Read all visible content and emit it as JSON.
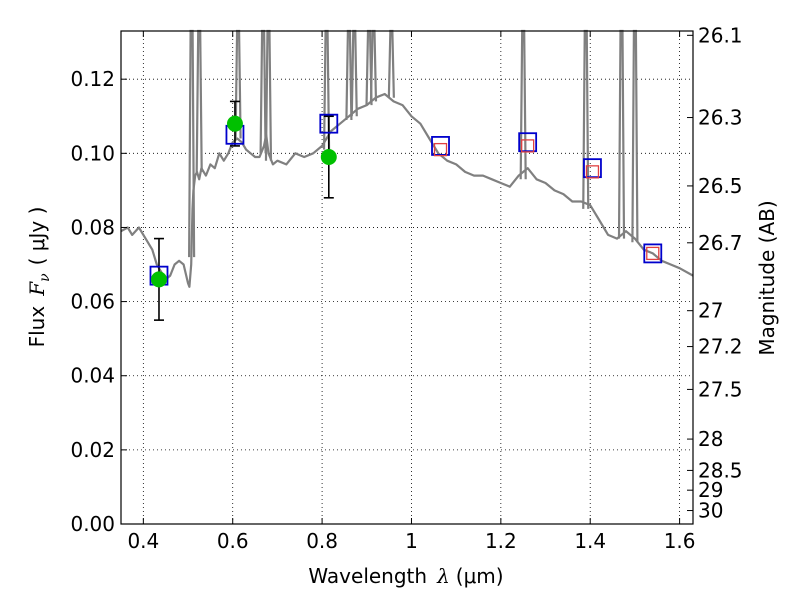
{
  "chart_data": {
    "type": "line",
    "xlabel_prefix": "Wavelength",
    "xlabel_symbol": "λ",
    "xlabel_unit": "(μm)",
    "ylabel_prefix": "Flux",
    "ylabel_symbol": "F",
    "ylabel_subscript": "ν",
    "ylabel_unit": "( μJy )",
    "y2label": "Magnitude (AB)",
    "xlim": [
      0.35,
      1.63
    ],
    "ylim": [
      0.0,
      0.133
    ],
    "grid": true,
    "x_ticks": [
      0.4,
      0.6,
      0.8,
      1.0,
      1.2,
      1.4,
      1.6
    ],
    "x_tick_labels": [
      "0.4",
      "0.6",
      "0.8",
      "1",
      "1.2",
      "1.4",
      "1.6"
    ],
    "y_ticks": [
      0.0,
      0.02,
      0.04,
      0.06,
      0.08,
      0.1,
      0.12
    ],
    "y_tick_labels": [
      "0.00",
      "0.02",
      "0.04",
      "0.06",
      "0.08",
      "0.10",
      "0.12"
    ],
    "mag_ticks": [
      26.1,
      26.3,
      26.5,
      26.7,
      27,
      27.2,
      27.5,
      28,
      28.5,
      29,
      30
    ],
    "mag_tick_labels": [
      "26.1",
      "26.3",
      "26.5",
      "26.7",
      "27",
      "27.2",
      "27.5",
      "28",
      "28.5",
      "29",
      "30"
    ],
    "series": [
      {
        "name": "model spectrum",
        "color": "#808080",
        "kind": "line",
        "x": [
          0.35,
          0.365,
          0.375,
          0.39,
          0.405,
          0.42,
          0.43,
          0.44,
          0.45,
          0.46,
          0.47,
          0.48,
          0.49,
          0.5,
          0.503,
          0.507,
          0.51,
          0.512,
          0.516,
          0.52,
          0.525,
          0.53,
          0.54,
          0.55,
          0.56,
          0.57,
          0.58,
          0.59,
          0.6,
          0.61,
          0.62,
          0.63,
          0.64,
          0.65,
          0.66,
          0.67,
          0.675,
          0.68,
          0.69,
          0.7,
          0.72,
          0.74,
          0.76,
          0.78,
          0.8,
          0.82,
          0.84,
          0.86,
          0.88,
          0.9,
          0.92,
          0.94,
          0.96,
          0.98,
          1.0,
          1.02,
          1.04,
          1.06,
          1.08,
          1.1,
          1.12,
          1.14,
          1.16,
          1.18,
          1.2,
          1.22,
          1.24,
          1.26,
          1.28,
          1.3,
          1.32,
          1.34,
          1.36,
          1.38,
          1.4,
          1.42,
          1.44,
          1.46,
          1.48,
          1.5,
          1.52,
          1.54,
          1.56,
          1.58,
          1.6,
          1.63
        ],
        "y": [
          0.079,
          0.08,
          0.078,
          0.08,
          0.077,
          0.074,
          0.07,
          0.068,
          0.066,
          0.067,
          0.07,
          0.071,
          0.07,
          0.065,
          0.064,
          0.07,
          0.085,
          0.09,
          0.094,
          0.095,
          0.093,
          0.096,
          0.094,
          0.097,
          0.096,
          0.1,
          0.098,
          0.1,
          0.103,
          0.104,
          0.103,
          0.101,
          0.1,
          0.099,
          0.099,
          0.102,
          0.105,
          0.1,
          0.097,
          0.098,
          0.097,
          0.1,
          0.099,
          0.1,
          0.102,
          0.106,
          0.108,
          0.11,
          0.112,
          0.113,
          0.115,
          0.116,
          0.114,
          0.113,
          0.11,
          0.108,
          0.104,
          0.1,
          0.098,
          0.097,
          0.095,
          0.094,
          0.094,
          0.093,
          0.092,
          0.091,
          0.094,
          0.096,
          0.093,
          0.092,
          0.09,
          0.089,
          0.087,
          0.087,
          0.086,
          0.082,
          0.078,
          0.077,
          0.079,
          0.077,
          0.074,
          0.073,
          0.071,
          0.07,
          0.069,
          0.067
        ]
      },
      {
        "name": "emission lines",
        "color": "#808080",
        "kind": "spikes",
        "x": [
          0.508,
          0.525,
          0.612,
          0.668,
          0.68,
          0.81,
          0.86,
          0.872,
          0.905,
          0.915,
          0.955,
          1.25,
          1.39,
          1.47,
          1.5
        ],
        "base": [
          0.072,
          0.095,
          0.104,
          0.1,
          0.098,
          0.101,
          0.109,
          0.11,
          0.113,
          0.114,
          0.115,
          0.093,
          0.085,
          0.077,
          0.076
        ]
      },
      {
        "name": "observed photometry",
        "color": "#00c000",
        "kind": "points-with-errors",
        "x": [
          0.435,
          0.605,
          0.815
        ],
        "y": [
          0.066,
          0.108,
          0.099
        ],
        "err": [
          0.011,
          0.006,
          0.011
        ]
      },
      {
        "name": "model photometry (blue squares)",
        "color": "#0000cc",
        "kind": "squares",
        "x": [
          0.435,
          0.605,
          0.815,
          1.065,
          1.26,
          1.405,
          1.54
        ],
        "y": [
          0.067,
          0.105,
          0.108,
          0.102,
          0.103,
          0.096,
          0.073
        ]
      },
      {
        "name": "model photometry (red squares)",
        "color": "#e04040",
        "kind": "small-squares",
        "x": [
          1.065,
          1.26,
          1.405,
          1.54
        ],
        "y": [
          0.101,
          0.102,
          0.095,
          0.073
        ]
      }
    ]
  }
}
